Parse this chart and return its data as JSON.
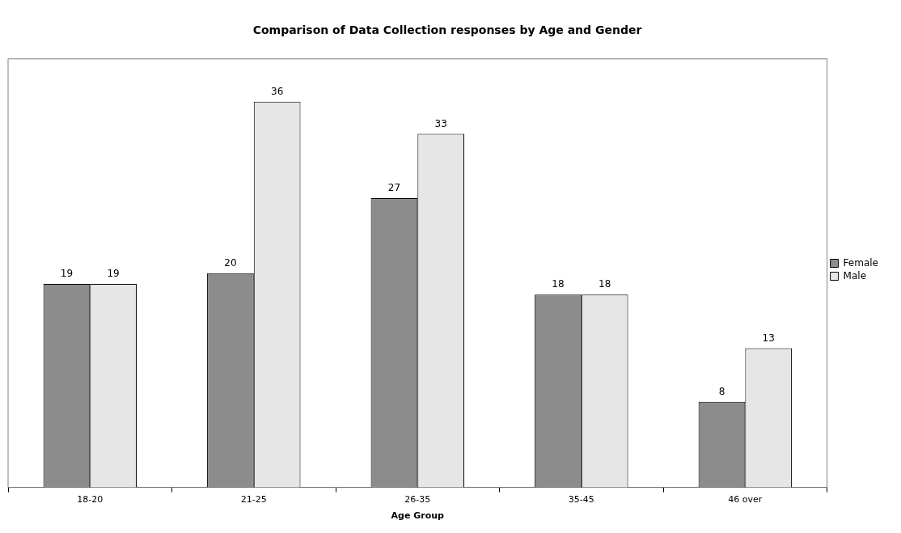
{
  "chart_data": {
    "type": "bar",
    "title": "Comparison of Data Collection responses by Age and Gender",
    "xlabel": "Age Group",
    "categories": [
      "18-20",
      "21-25",
      "26-35",
      "35-45",
      "46 over"
    ],
    "series": [
      {
        "name": "Female",
        "color": "#8c8c8c",
        "values": [
          19,
          20,
          27,
          18,
          8
        ]
      },
      {
        "name": "Male",
        "color": "#e6e6e6",
        "values": [
          19,
          36,
          33,
          18,
          13
        ]
      }
    ],
    "data_labels": true,
    "legend": "right"
  }
}
